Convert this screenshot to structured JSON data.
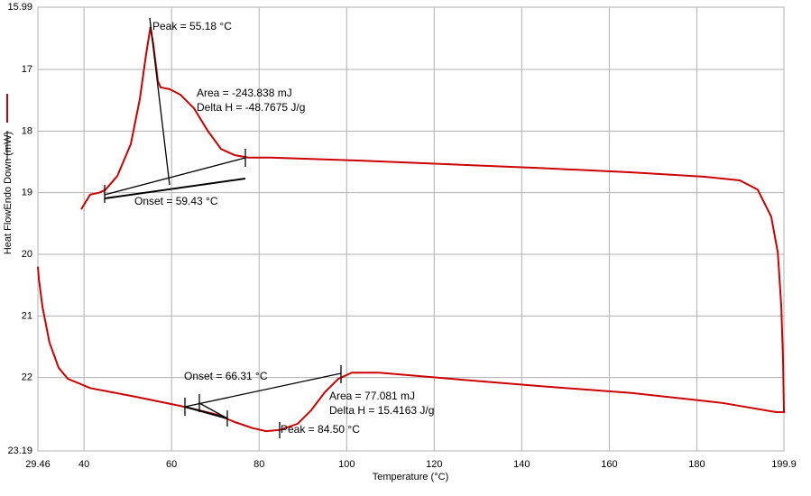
{
  "chart_data": {
    "type": "line",
    "x_label": "Temperature (°C)",
    "y_label": "Heat FlowEndo Down (mW)",
    "color": "#cc0000",
    "grid": true,
    "invert_y": true,
    "xlim": [
      29.46,
      199.9
    ],
    "ylim": [
      15.99,
      23.19
    ],
    "xticks": [
      29.46,
      40,
      60,
      80,
      100,
      120,
      140,
      160,
      180,
      199.9
    ],
    "yticks": [
      15.99,
      17,
      18,
      19,
      20,
      21,
      22,
      23.19
    ],
    "x": [
      39.35,
      41.41,
      43.47,
      44.92,
      47.6,
      50.69,
      52.75,
      54.19,
      55.18,
      55.84,
      56.87,
      57.49,
      59.55,
      62.02,
      65.12,
      68.21,
      71.3,
      74.39,
      77.48,
      82.63,
      103.24,
      123.85,
      144.46,
      165.07,
      181.56,
      189.8,
      193.9,
      197.0,
      198.5,
      199.3,
      199.7,
      199.9,
      198.1,
      185.7,
      165.07,
      144.46,
      123.85,
      107.4,
      101.2,
      98.1,
      95.0,
      91.9,
      88.8,
      84.7,
      81.6,
      78.5,
      74.39,
      70.3,
      66.2,
      62.02,
      51.7,
      41.41,
      36.3,
      34.2,
      32.1,
      30.5,
      29.7,
      29.46
    ],
    "values": [
      19.27,
      19.03,
      19.0,
      18.95,
      18.73,
      18.21,
      17.48,
      16.75,
      16.31,
      16.6,
      17.19,
      17.29,
      17.32,
      17.41,
      17.63,
      17.99,
      18.29,
      18.39,
      18.43,
      18.43,
      18.48,
      18.54,
      18.6,
      18.67,
      18.74,
      18.8,
      18.95,
      19.39,
      19.97,
      20.85,
      21.73,
      22.56,
      22.56,
      22.41,
      22.25,
      22.14,
      22.02,
      21.92,
      21.92,
      22.02,
      22.24,
      22.53,
      22.75,
      22.85,
      22.87,
      22.82,
      22.72,
      22.6,
      22.53,
      22.46,
      22.31,
      22.17,
      22.02,
      21.84,
      21.43,
      20.85,
      20.41,
      20.2
    ],
    "annotations": [
      "Peak = 55.18 °C",
      "Area = -243.838 mJ",
      "Delta H = -48.7675 J/g",
      "Onset = 59.43 °C",
      "Onset = 66.31 °C",
      "Area = 77.081 mJ",
      "Delta H = 15.4163 J/g",
      "Peak = 84.50 °C"
    ]
  }
}
